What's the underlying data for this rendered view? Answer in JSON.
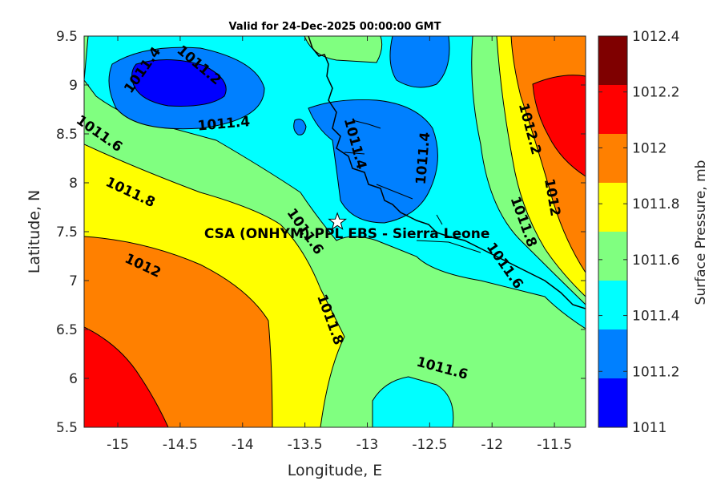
{
  "title": "Valid for 24-Dec-2025 00:00:00 GMT",
  "xlabel": "Longitude, E",
  "ylabel": "Latitude, N",
  "colorbar_label": "Surface Pressure, mb",
  "x_ticks": [
    "-15",
    "-14.5",
    "-14",
    "-13.5",
    "-13",
    "-12.5",
    "-12",
    "-11.5"
  ],
  "y_ticks": [
    "9.5",
    "9",
    "8.5",
    "8",
    "7.5",
    "7",
    "6.5",
    "6",
    "5.5"
  ],
  "colorbar_ticks": [
    "1012.4",
    "1012.2",
    "1012",
    "1011.8",
    "1011.6",
    "1011.4",
    "1011.2",
    "1011"
  ],
  "colorbar_colors": [
    "#7f0000",
    "#ff0000",
    "#ff8000",
    "#ffff00",
    "#80ff80",
    "#00ffff",
    "#0080ff",
    "#0000ff"
  ],
  "station": {
    "label": "CSA (ONHYM) PPL EBS  - Sierra Leone",
    "lon": -13.24,
    "lat": 7.6
  },
  "contour_labels": [
    {
      "text": "1011.4",
      "lon": -14.8,
      "lat": 9.15
    },
    {
      "text": "1011.2",
      "lon": -14.35,
      "lat": 9.2
    },
    {
      "text": "1011.4",
      "lon": -14.15,
      "lat": 8.6
    },
    {
      "text": "1011.6",
      "lon": -15.15,
      "lat": 8.5
    },
    {
      "text": "1011.4",
      "lon": -13.1,
      "lat": 8.4
    },
    {
      "text": "1011.4",
      "lon": -12.55,
      "lat": 8.25
    },
    {
      "text": "1012.2",
      "lon": -11.7,
      "lat": 8.55
    },
    {
      "text": "1012",
      "lon": -11.52,
      "lat": 7.85
    },
    {
      "text": "1011.8",
      "lon": -14.9,
      "lat": 7.9
    },
    {
      "text": "1011.6",
      "lon": -13.5,
      "lat": 7.5
    },
    {
      "text": "1011.8",
      "lon": -11.75,
      "lat": 7.6
    },
    {
      "text": "1011.6",
      "lon": -11.9,
      "lat": 7.15
    },
    {
      "text": "1012",
      "lon": -14.8,
      "lat": 7.15
    },
    {
      "text": "1011.8",
      "lon": -13.3,
      "lat": 6.6
    },
    {
      "text": "1011.6",
      "lon": -12.4,
      "lat": 6.1
    }
  ]
}
